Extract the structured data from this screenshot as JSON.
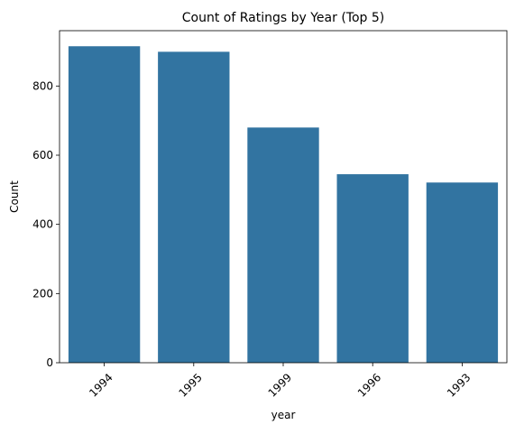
{
  "chart_data": {
    "type": "bar",
    "title": "Count of Ratings by Year (Top 5)",
    "xlabel": "year",
    "ylabel": "Count",
    "categories": [
      "1994",
      "1995",
      "1999",
      "1996",
      "1993"
    ],
    "values": [
      915,
      899,
      680,
      545,
      521
    ],
    "ylim": [
      0,
      960
    ],
    "yticks": [
      0,
      200,
      400,
      600,
      800
    ],
    "grid": false,
    "legend": "none",
    "bar_color": "#3274a1",
    "x_tick_rotation_deg": 45
  }
}
